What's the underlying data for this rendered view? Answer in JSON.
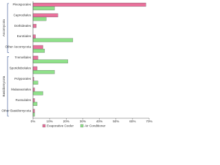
{
  "chart_data": {
    "type": "bar",
    "orientation": "horizontal",
    "categories": [
      "Pleosporales",
      "Capnodiales",
      "Dothideales",
      "Eurotiales",
      "Other Ascomycota",
      "Tremellales",
      "Sporidiobolales",
      "Polyporales",
      "Malasseziales",
      "Russulales",
      "Other Basidiomycota"
    ],
    "category_groups": [
      "Ascomycota",
      "Ascomycota",
      "Ascomycota",
      "Ascomycota",
      "Ascomycota",
      "Basidiomycota",
      "Basidiomycota",
      "Basidiomycota",
      "Basidiomycota",
      "Basidiomycota",
      "Basidiomycota"
    ],
    "series": [
      {
        "name": "Evaporative Cooler",
        "color": "#e8719b",
        "values": [
          68,
          15,
          2,
          1.5,
          6,
          3,
          2.5,
          0.5,
          1,
          1,
          1
        ]
      },
      {
        "name": "Air Conditioner",
        "color": "#8fe08a",
        "values": [
          13,
          8,
          0,
          24,
          7,
          21,
          13,
          3,
          6,
          2.5,
          1
        ]
      }
    ],
    "xlim": [
      0,
      70
    ],
    "xticks": [
      {
        "value": 0,
        "label": "0%"
      },
      {
        "value": 10,
        "label": "10%"
      },
      {
        "value": 20,
        "label": "20%"
      },
      {
        "value": 30,
        "label": "30%"
      },
      {
        "value": 40,
        "label": "40%"
      },
      {
        "value": 50,
        "label": "50%"
      },
      {
        "value": 60,
        "label": "60%"
      },
      {
        "value": 70,
        "label": "70%"
      }
    ],
    "legend": "bottom"
  }
}
